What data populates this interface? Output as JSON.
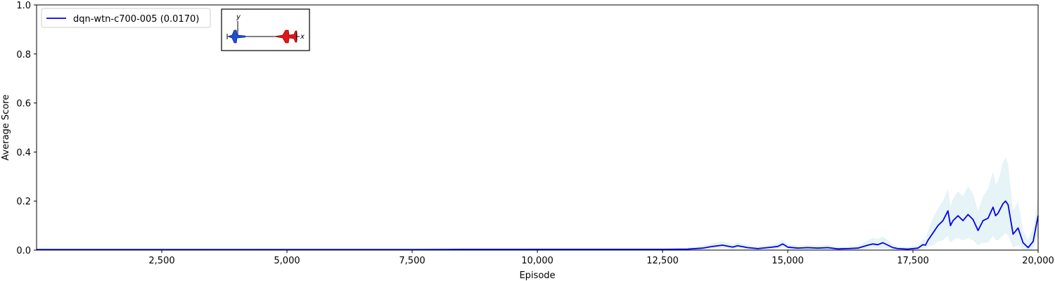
{
  "chart_data": {
    "type": "line",
    "title": "",
    "xlabel": "Episode",
    "ylabel": "Average Score",
    "xlim": [
      0,
      20000
    ],
    "ylim": [
      0,
      1.0
    ],
    "xticks": [
      2500,
      5000,
      7500,
      10000,
      12500,
      15000,
      17500,
      20000
    ],
    "xtick_labels": [
      "2,500",
      "5,000",
      "7,500",
      "10,000",
      "12,500",
      "15,000",
      "17,500",
      "20,000"
    ],
    "yticks": [
      0.0,
      0.2,
      0.4,
      0.6,
      0.8,
      1.0
    ],
    "ytick_labels": [
      "0.0",
      "0.2",
      "0.4",
      "0.6",
      "0.8",
      "1.0"
    ],
    "grid": false,
    "legend_position": "top-left",
    "series": [
      {
        "name": "dqn-wtn-c700-005 (0.0170)",
        "color": "#0000ee",
        "band_color": "#add8e6",
        "x": [
          0,
          2500,
          5000,
          7500,
          8500,
          9500,
          10000,
          11000,
          12000,
          12500,
          13000,
          13300,
          13500,
          13700,
          13900,
          14000,
          14200,
          14400,
          14600,
          14800,
          14900,
          15000,
          15200,
          15400,
          15600,
          15800,
          16000,
          16200,
          16400,
          16600,
          16700,
          16800,
          16900,
          17000,
          17100,
          17200,
          17400,
          17600,
          17700,
          17750,
          17800,
          17900,
          18000,
          18100,
          18200,
          18250,
          18300,
          18400,
          18500,
          18600,
          18700,
          18800,
          18900,
          19000,
          19100,
          19150,
          19200,
          19300,
          19350,
          19400,
          19500,
          19600,
          19700,
          19800,
          19900,
          20000
        ],
        "y": [
          0.002,
          0.002,
          0.002,
          0.002,
          0.003,
          0.003,
          0.003,
          0.003,
          0.003,
          0.003,
          0.004,
          0.008,
          0.015,
          0.02,
          0.012,
          0.018,
          0.01,
          0.006,
          0.01,
          0.015,
          0.025,
          0.012,
          0.008,
          0.01,
          0.008,
          0.01,
          0.005,
          0.006,
          0.008,
          0.02,
          0.025,
          0.022,
          0.03,
          0.02,
          0.01,
          0.006,
          0.004,
          0.008,
          0.022,
          0.02,
          0.04,
          0.07,
          0.1,
          0.12,
          0.16,
          0.1,
          0.12,
          0.14,
          0.12,
          0.145,
          0.125,
          0.08,
          0.12,
          0.13,
          0.175,
          0.14,
          0.15,
          0.19,
          0.2,
          0.185,
          0.065,
          0.09,
          0.03,
          0.01,
          0.035,
          0.14
        ],
        "lower": [
          0.0,
          0.0,
          0.0,
          0.0,
          0.0,
          0.0,
          0.0,
          0.0,
          0.0,
          0.0,
          0.0,
          0.0,
          0.005,
          0.008,
          0.003,
          0.006,
          0.002,
          0.0,
          0.002,
          0.005,
          0.01,
          0.003,
          0.0,
          0.0,
          0.0,
          0.0,
          0.0,
          0.0,
          0.0,
          0.005,
          0.008,
          0.006,
          0.01,
          0.005,
          0.0,
          0.0,
          0.0,
          0.0,
          0.005,
          0.005,
          0.015,
          0.02,
          0.035,
          0.04,
          0.06,
          0.03,
          0.04,
          0.05,
          0.04,
          0.05,
          0.04,
          0.02,
          0.03,
          0.03,
          0.06,
          0.04,
          0.04,
          0.06,
          0.07,
          0.06,
          0.01,
          0.02,
          0.0,
          0.0,
          0.005,
          0.06
        ],
        "upper": [
          0.005,
          0.005,
          0.006,
          0.006,
          0.007,
          0.007,
          0.008,
          0.008,
          0.008,
          0.008,
          0.01,
          0.018,
          0.028,
          0.035,
          0.024,
          0.032,
          0.02,
          0.014,
          0.02,
          0.028,
          0.042,
          0.024,
          0.018,
          0.02,
          0.018,
          0.02,
          0.012,
          0.014,
          0.018,
          0.04,
          0.05,
          0.045,
          0.055,
          0.04,
          0.022,
          0.014,
          0.012,
          0.018,
          0.045,
          0.04,
          0.075,
          0.13,
          0.17,
          0.2,
          0.25,
          0.18,
          0.21,
          0.24,
          0.22,
          0.26,
          0.23,
          0.16,
          0.22,
          0.25,
          0.32,
          0.27,
          0.28,
          0.36,
          0.38,
          0.35,
          0.16,
          0.2,
          0.08,
          0.04,
          0.09,
          0.22
        ]
      }
    ],
    "inset_axes": {
      "x_label": "x",
      "y_label": "y"
    }
  }
}
